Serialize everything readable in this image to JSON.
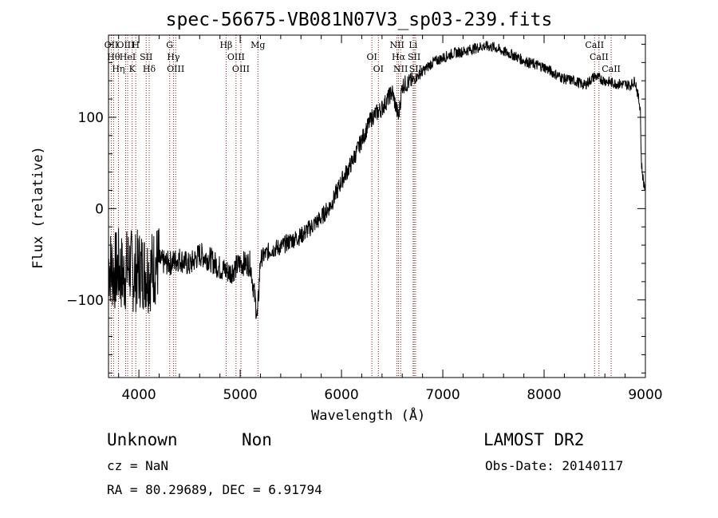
{
  "chart_data": {
    "type": "line",
    "title": "spec-56675-VB081N07V3_sp03-239.fits",
    "xlabel": "Wavelength (Å)",
    "ylabel": "Flux (relative)",
    "xlim": [
      3700,
      9000
    ],
    "ylim": [
      -185,
      190
    ],
    "x_ticks": [
      4000,
      5000,
      6000,
      7000,
      8000,
      9000
    ],
    "y_ticks": [
      -100,
      0,
      100
    ],
    "grid": false,
    "series": [
      {
        "color": "#000000",
        "x": [
          3700,
          3750,
          3800,
          3850,
          3900,
          3950,
          4000,
          4100,
          4200,
          4300,
          4400,
          4500,
          4600,
          4700,
          4800,
          4900,
          5000,
          5100,
          5170,
          5200,
          5300,
          5400,
          5500,
          5600,
          5700,
          5800,
          5900,
          6000,
          6100,
          6200,
          6300,
          6400,
          6500,
          6563,
          6600,
          6700,
          6800,
          6900,
          7000,
          7100,
          7200,
          7300,
          7400,
          7500,
          7600,
          7700,
          7800,
          7900,
          8000,
          8100,
          8200,
          8300,
          8400,
          8500,
          8600,
          8700,
          8800,
          8850,
          8900,
          8950,
          8960,
          8980,
          9000
        ],
        "y": [
          -60,
          -70,
          -65,
          -75,
          -60,
          -72,
          -65,
          -70,
          -58,
          -60,
          -55,
          -62,
          -50,
          -55,
          -65,
          -70,
          -60,
          -60,
          -120,
          -55,
          -45,
          -42,
          -35,
          -30,
          -20,
          -10,
          5,
          30,
          50,
          75,
          100,
          110,
          128,
          100,
          135,
          140,
          150,
          160,
          165,
          170,
          172,
          175,
          178,
          177,
          172,
          168,
          162,
          158,
          155,
          148,
          142,
          140,
          135,
          145,
          140,
          137,
          136,
          135,
          140,
          110,
          50,
          30,
          20
        ]
      }
    ],
    "lines": [
      {
        "x": 3727,
        "label": "OII"
      },
      {
        "x": 3750,
        "label": "Hθ"
      },
      {
        "x": 3798,
        "label": "Hη"
      },
      {
        "x": 3869,
        "label": "OIII"
      },
      {
        "x": 3889,
        "label": "HeI"
      },
      {
        "x": 3934,
        "label": "K"
      },
      {
        "x": 3969,
        "label": "H"
      },
      {
        "x": 4072,
        "label": "SII"
      },
      {
        "x": 4102,
        "label": "Hδ"
      },
      {
        "x": 4304,
        "label": "G"
      },
      {
        "x": 4341,
        "label": "Hγ"
      },
      {
        "x": 4363,
        "label": "OIII"
      },
      {
        "x": 4861,
        "label": "Hβ"
      },
      {
        "x": 4959,
        "label": "OIII"
      },
      {
        "x": 5007,
        "label": "OIII"
      },
      {
        "x": 5175,
        "label": "Mg"
      },
      {
        "x": 6300,
        "label": "OI"
      },
      {
        "x": 6364,
        "label": "OI"
      },
      {
        "x": 6548,
        "label": "NII"
      },
      {
        "x": 6563,
        "label": "Hα"
      },
      {
        "x": 6584,
        "label": "NII"
      },
      {
        "x": 6707,
        "label": "Li"
      },
      {
        "x": 6717,
        "label": "SII"
      },
      {
        "x": 6731,
        "label": "SII"
      },
      {
        "x": 8498,
        "label": "CaII"
      },
      {
        "x": 8542,
        "label": "CaII"
      },
      {
        "x": 8662,
        "label": "CaII"
      }
    ],
    "line_color": "#8b1a1a"
  },
  "info": {
    "class": "Unknown",
    "subclass": "Non",
    "survey": "LAMOST DR2",
    "cz": "cz = NaN",
    "obs_date": "Obs-Date: 20140117",
    "radec": "RA =  80.29689, DEC =   6.91794"
  }
}
